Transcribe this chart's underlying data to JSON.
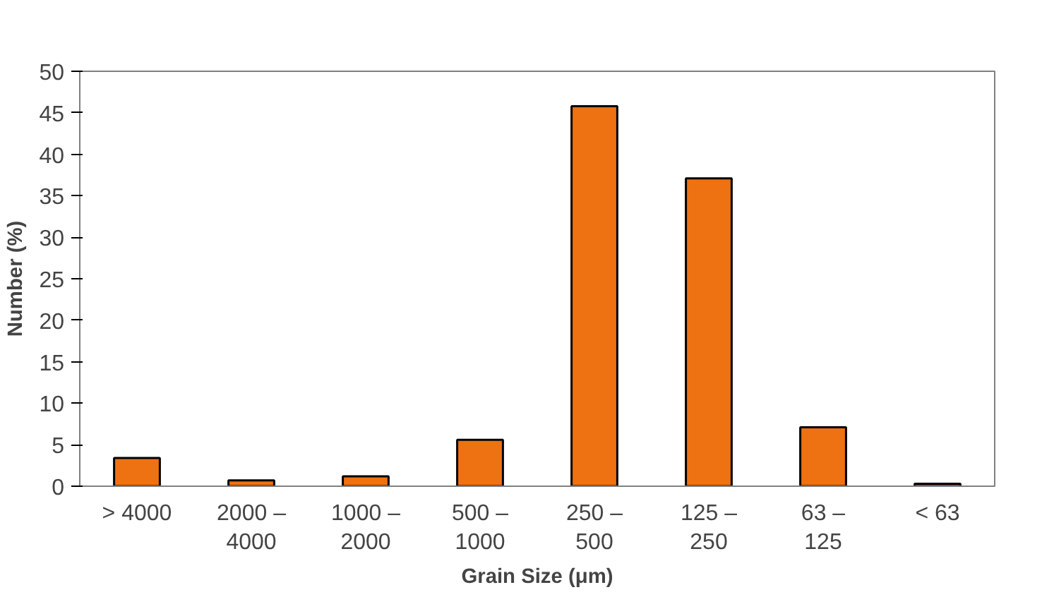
{
  "chart_data": {
    "type": "bar",
    "xlabel": "Grain Size (μm)",
    "ylabel": "Number (%)",
    "categories": [
      "> 4000",
      "2000 –\n4000",
      "1000 –\n2000",
      "500 –\n1000",
      "250 –\n500",
      "125 –\n250",
      "63 –\n125",
      "< 63"
    ],
    "values": [
      3.4,
      0.7,
      1.2,
      5.6,
      45.8,
      37.1,
      7.1,
      0.3
    ],
    "color": "#ee7212",
    "ylim": [
      0,
      50
    ],
    "yticks": [
      0,
      5,
      10,
      15,
      20,
      25,
      30,
      35,
      40,
      45,
      50
    ],
    "grid": false
  }
}
